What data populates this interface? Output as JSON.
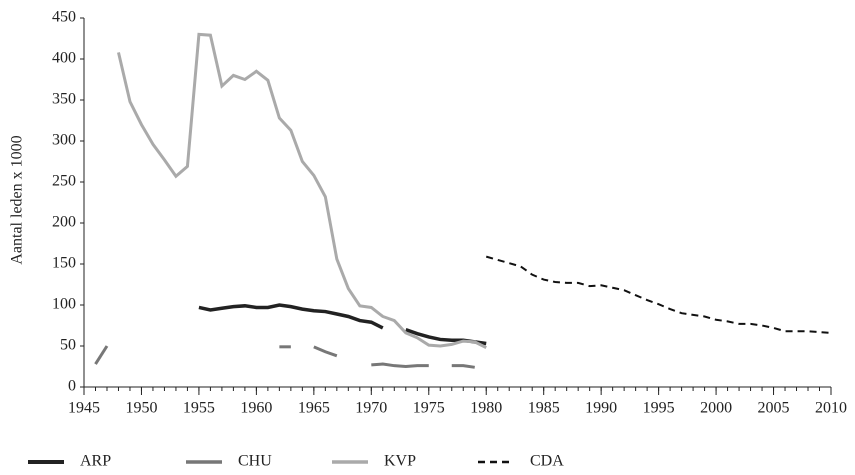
{
  "chart_data": {
    "type": "line",
    "ylabel": "Aantal leden x 1000",
    "x": [
      1945,
      1946,
      1947,
      1948,
      1949,
      1950,
      1951,
      1952,
      1953,
      1954,
      1955,
      1956,
      1957,
      1958,
      1959,
      1960,
      1961,
      1962,
      1963,
      1964,
      1965,
      1966,
      1967,
      1968,
      1969,
      1970,
      1971,
      1972,
      1973,
      1974,
      1975,
      1976,
      1977,
      1978,
      1979,
      1980,
      1981,
      1982,
      1983,
      1984,
      1985,
      1986,
      1987,
      1988,
      1989,
      1990,
      1991,
      1992,
      1993,
      1994,
      1995,
      1996,
      1997,
      1998,
      1999,
      2000,
      2001,
      2002,
      2003,
      2004,
      2005,
      2006,
      2007,
      2008,
      2009,
      2010
    ],
    "series": [
      {
        "name": "ARP",
        "color": "#222222",
        "width": 3.5,
        "dashed": false,
        "values": [
          null,
          null,
          null,
          null,
          null,
          null,
          null,
          null,
          null,
          null,
          97,
          94,
          96,
          98,
          99,
          97,
          97,
          100,
          98,
          95,
          93,
          92,
          89,
          86,
          81,
          79,
          72,
          null,
          70,
          65,
          61,
          58,
          57,
          57,
          55,
          53,
          null,
          null,
          null,
          null,
          null,
          null,
          null,
          null,
          null,
          null,
          null,
          null,
          null,
          null,
          null,
          null,
          null,
          null,
          null,
          null,
          null,
          null,
          null,
          null,
          null,
          null,
          null,
          null,
          null,
          null
        ]
      },
      {
        "name": "CHU",
        "color": "#777777",
        "width": 3,
        "dashed": false,
        "values": [
          null,
          28,
          50,
          null,
          null,
          null,
          null,
          null,
          null,
          null,
          null,
          null,
          null,
          null,
          null,
          null,
          null,
          49,
          49,
          null,
          49,
          43,
          38,
          null,
          null,
          27,
          28,
          26,
          25,
          26,
          26,
          null,
          26,
          26,
          24,
          null,
          null,
          null,
          null,
          null,
          null,
          null,
          null,
          null,
          null,
          null,
          null,
          null,
          null,
          null,
          null,
          null,
          null,
          null,
          null,
          null,
          null,
          null,
          null,
          null,
          null,
          null,
          null,
          null,
          null,
          null
        ]
      },
      {
        "name": "KVP",
        "color": "#aaaaaa",
        "width": 3,
        "dashed": false,
        "values": [
          null,
          null,
          null,
          408,
          348,
          320,
          296,
          277,
          257,
          269,
          430,
          429,
          367,
          380,
          375,
          385,
          374,
          328,
          313,
          275,
          258,
          232,
          156,
          120,
          99,
          97,
          86,
          81,
          66,
          60,
          51,
          50,
          52,
          56,
          55,
          48,
          null,
          null,
          null,
          null,
          null,
          null,
          null,
          null,
          null,
          null,
          null,
          null,
          null,
          null,
          null,
          null,
          null,
          null,
          null,
          null,
          null,
          null,
          null,
          null,
          null,
          null,
          null,
          null,
          null,
          null
        ]
      },
      {
        "name": "CDA",
        "color": "#111111",
        "width": 2,
        "dashed": true,
        "values": [
          null,
          null,
          null,
          null,
          null,
          null,
          null,
          null,
          null,
          null,
          null,
          null,
          null,
          null,
          null,
          null,
          null,
          null,
          null,
          null,
          null,
          null,
          null,
          null,
          null,
          null,
          null,
          null,
          null,
          null,
          null,
          null,
          null,
          null,
          null,
          159,
          155,
          151,
          147,
          137,
          131,
          128,
          127,
          127,
          123,
          124,
          121,
          118,
          112,
          106,
          101,
          95,
          90,
          88,
          86,
          82,
          80,
          77,
          77,
          75,
          72,
          68,
          68,
          68,
          67,
          66
        ]
      }
    ],
    "xlim": [
      1945,
      2010
    ],
    "xticks": [
      1945,
      1950,
      1955,
      1960,
      1965,
      1970,
      1975,
      1980,
      1985,
      1990,
      1995,
      2000,
      2005,
      2010
    ],
    "ylim": [
      0,
      450
    ],
    "yticks": [
      0,
      50,
      100,
      150,
      200,
      250,
      300,
      350,
      400,
      450
    ],
    "grid": false,
    "legend": "bottom"
  }
}
